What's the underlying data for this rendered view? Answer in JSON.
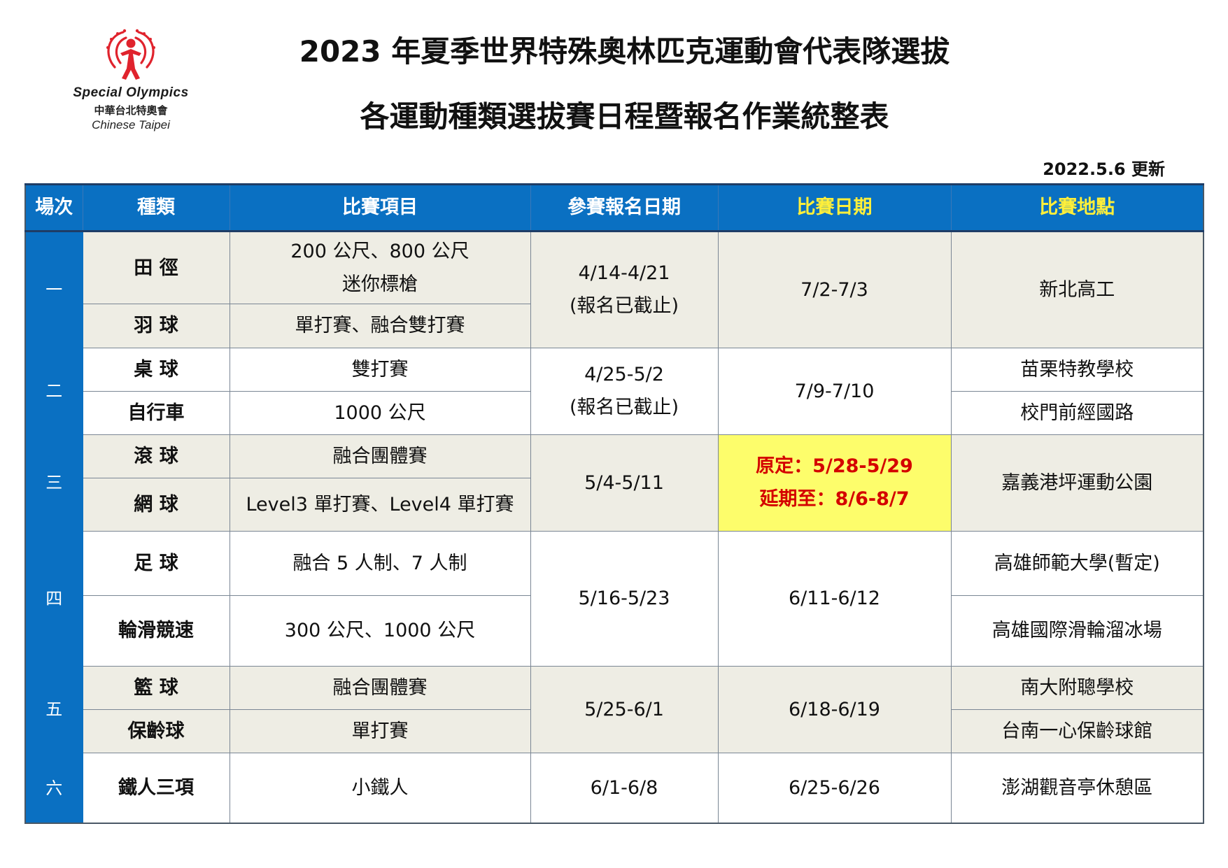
{
  "logo": {
    "name": "Special Olympics",
    "subtitle_cn": "中華台北特奧會",
    "subtitle_en": "Chinese Taipei",
    "color": "#e0232d"
  },
  "title_line1": "2023 年夏季世界特殊奧林匹克運動會代表隊選拔",
  "title_line2": "各運動種類選拔賽日程暨報名作業統整表",
  "update_note": "2022.5.6 更新",
  "colors": {
    "header_blue": "#0a70c2",
    "header_highlight_text": "#ffef3a",
    "row_gray": "#eeede4",
    "postponed_bg": "#fdfd6b",
    "postponed_text": "#d40000"
  },
  "table": {
    "headers": {
      "round": "場次",
      "sport": "種類",
      "events": "比賽項目",
      "registration": "參賽報名日期",
      "match_date": "比賽日期",
      "venue": "比賽地點"
    },
    "rows": [
      {
        "round": "一",
        "sport": "田  徑",
        "events": [
          "200 公尺、800 公尺",
          "迷你標槍"
        ],
        "registration": [
          "4/14-4/21",
          "(報名已截止)"
        ],
        "match_date": "7/2-7/3",
        "venue": "新北高工"
      },
      {
        "sport": "羽  球",
        "events": "單打賽、融合雙打賽"
      },
      {
        "round": "二",
        "sport": "桌  球",
        "events": "雙打賽",
        "registration": [
          "4/25-5/2",
          "(報名已截止)"
        ],
        "match_date": "7/9-7/10",
        "venue": "苗栗特教學校"
      },
      {
        "sport": "自行車",
        "events": "1000 公尺",
        "venue": "校門前經國路"
      },
      {
        "round": "三",
        "sport": "滾  球",
        "events": "融合團體賽",
        "registration": "5/4-5/11",
        "match_date": [
          "原定：5/28-5/29",
          "延期至：8/6-8/7"
        ],
        "venue": "嘉義港坪運動公園"
      },
      {
        "sport": "網  球",
        "events": "Level3 單打賽、Level4 單打賽"
      },
      {
        "round": "四",
        "sport": "足  球",
        "events": "融合 5 人制、7 人制",
        "registration": "5/16-5/23",
        "match_date": "6/11-6/12",
        "venue": "高雄師範大學(暫定)"
      },
      {
        "sport": "輪滑競速",
        "events": "300 公尺、1000 公尺",
        "venue": "高雄國際滑輪溜冰場"
      },
      {
        "round": "五",
        "sport": "籃  球",
        "events": "融合團體賽",
        "registration": "5/25-6/1",
        "match_date": "6/18-6/19",
        "venue": "南大附聰學校"
      },
      {
        "sport": "保齡球",
        "events": "單打賽",
        "venue": "台南一心保齡球館"
      },
      {
        "round": "六",
        "sport": "鐵人三項",
        "events": "小鐵人",
        "registration": "6/1-6/8",
        "match_date": "6/25-6/26",
        "venue": "澎湖觀音亭休憩區"
      }
    ]
  }
}
